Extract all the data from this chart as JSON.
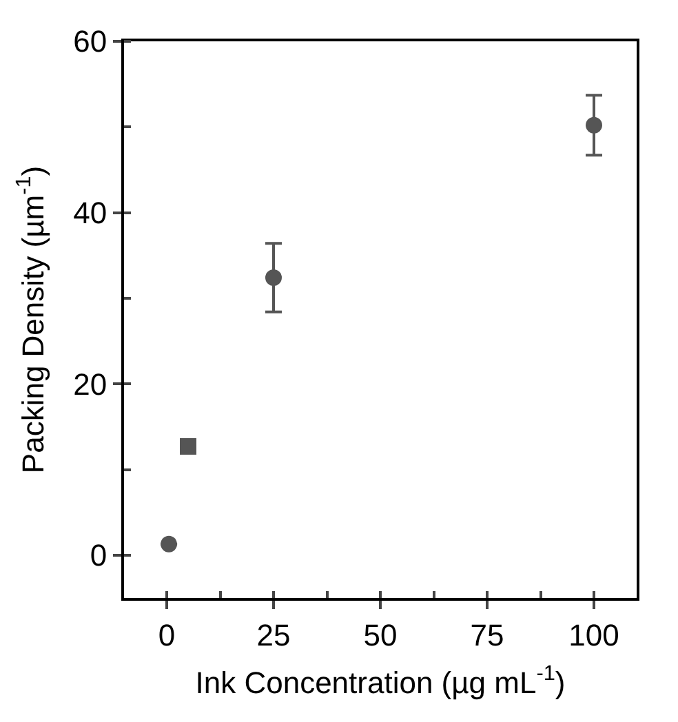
{
  "chart_data": {
    "type": "scatter",
    "xlabel": "Ink Concentration (µg mL$^{-1}$)",
    "ylabel": "Packing Density (µm$^{-1}$)",
    "xlim": [
      -10,
      110
    ],
    "xticks": [
      0,
      25,
      50,
      75,
      100
    ],
    "ylim": [
      -5,
      60
    ],
    "yticks": [
      0,
      20,
      40,
      60
    ],
    "series": [
      {
        "color": "#555555",
        "marker": "circle",
        "x": [
          0.5,
          25,
          100
        ],
        "values": [
          1.3,
          32.4,
          50.2
        ],
        "errors": [
          null,
          4,
          3.5
        ]
      },
      {
        "color": "#555555",
        "marker": "square",
        "x": [
          5
        ],
        "values": [
          12.7
        ],
        "errors": [
          null
        ]
      }
    ]
  }
}
